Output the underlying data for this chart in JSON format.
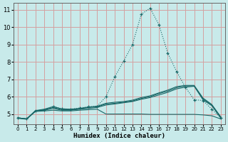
{
  "xlabel": "Humidex (Indice chaleur)",
  "ylabel": "",
  "bg_color": "#c8eaea",
  "grid_color": "#d4a0a0",
  "line_color": "#1a6868",
  "xlim": [
    -0.5,
    23.5
  ],
  "ylim": [
    4.4,
    11.4
  ],
  "yticks": [
    5,
    6,
    7,
    8,
    9,
    10,
    11
  ],
  "xticks": [
    0,
    1,
    2,
    3,
    4,
    5,
    6,
    7,
    8,
    9,
    10,
    11,
    12,
    13,
    14,
    15,
    16,
    17,
    18,
    19,
    20,
    21,
    22,
    23
  ],
  "lines": [
    {
      "x": [
        0,
        1,
        2,
        3,
        4,
        5,
        6,
        7,
        8,
        9,
        10,
        11,
        12,
        13,
        14,
        15,
        16,
        17,
        18,
        19,
        20,
        21,
        22,
        23
      ],
      "y": [
        4.75,
        4.7,
        5.15,
        5.18,
        5.22,
        5.18,
        5.18,
        5.22,
        5.25,
        5.28,
        5.0,
        5.0,
        5.0,
        5.0,
        5.0,
        4.98,
        4.98,
        4.98,
        4.98,
        4.98,
        4.98,
        4.95,
        4.9,
        4.72
      ],
      "marker": null,
      "linestyle": "-"
    },
    {
      "x": [
        0,
        1,
        2,
        3,
        4,
        5,
        6,
        7,
        8,
        9,
        10,
        11,
        12,
        13,
        14,
        15,
        16,
        17,
        18,
        19,
        20,
        21,
        22,
        23
      ],
      "y": [
        4.78,
        4.72,
        5.18,
        5.22,
        5.32,
        5.22,
        5.22,
        5.28,
        5.32,
        5.38,
        5.52,
        5.58,
        5.65,
        5.72,
        5.85,
        5.95,
        6.1,
        6.25,
        6.45,
        6.55,
        6.6,
        5.82,
        5.48,
        4.78
      ],
      "marker": null,
      "linestyle": "-"
    },
    {
      "x": [
        0,
        1,
        2,
        3,
        4,
        5,
        6,
        7,
        8,
        9,
        10,
        11,
        12,
        13,
        14,
        15,
        16,
        17,
        18,
        19,
        20,
        21,
        22,
        23
      ],
      "y": [
        4.78,
        4.72,
        5.18,
        5.25,
        5.38,
        5.25,
        5.25,
        5.3,
        5.38,
        5.42,
        5.58,
        5.62,
        5.68,
        5.75,
        5.9,
        6.0,
        6.18,
        6.32,
        6.52,
        6.62,
        6.62,
        5.88,
        5.52,
        4.82
      ],
      "marker": null,
      "linestyle": "-"
    },
    {
      "x": [
        0,
        1,
        2,
        3,
        4,
        5,
        6,
        7,
        8,
        9,
        10,
        11,
        12,
        13,
        14,
        15,
        16,
        17,
        18,
        19,
        20,
        21,
        22,
        23
      ],
      "y": [
        4.78,
        4.72,
        5.2,
        5.28,
        5.42,
        5.3,
        5.28,
        5.32,
        5.4,
        5.45,
        5.62,
        5.68,
        5.72,
        5.8,
        5.95,
        6.05,
        6.22,
        6.38,
        6.58,
        6.65,
        6.65,
        5.92,
        5.55,
        4.85
      ],
      "marker": null,
      "linestyle": "-"
    },
    {
      "x": [
        0,
        1,
        2,
        3,
        4,
        5,
        6,
        7,
        8,
        9,
        10,
        11,
        12,
        13,
        14,
        15,
        16,
        17,
        18,
        19,
        20,
        21,
        22,
        23
      ],
      "y": [
        4.78,
        4.72,
        5.18,
        5.25,
        5.45,
        5.3,
        5.28,
        5.35,
        5.42,
        5.45,
        6.0,
        7.15,
        8.05,
        9.0,
        10.75,
        11.1,
        10.15,
        8.52,
        7.45,
        6.55,
        5.82,
        5.78,
        5.28,
        4.78
      ],
      "marker": "+",
      "linestyle": ":"
    }
  ]
}
